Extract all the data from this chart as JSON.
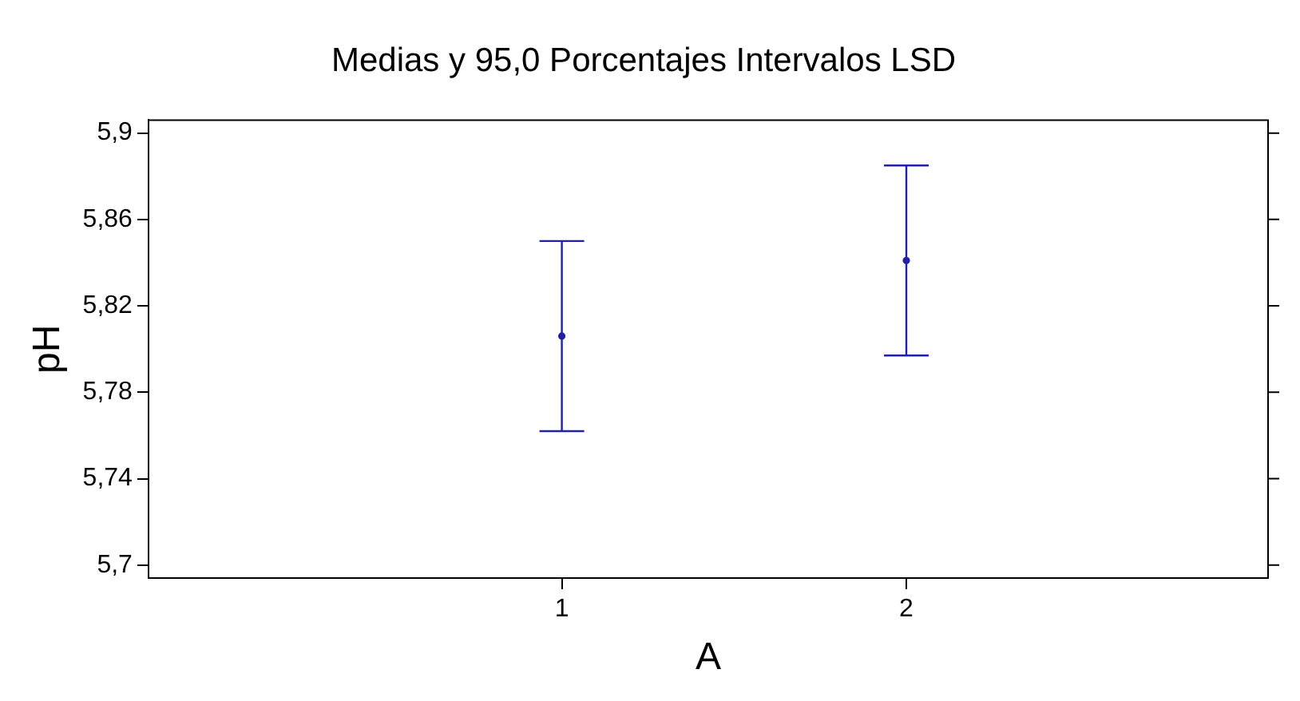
{
  "chart_data": {
    "type": "scatter",
    "title": "Medias y 95,0 Porcentajes Intervalos LSD",
    "xlabel": "A",
    "ylabel": "pH",
    "x": [
      1,
      2
    ],
    "series": [
      {
        "color": "#2020a8",
        "values": [
          5.806,
          5.841
        ],
        "errors": [
          0.044,
          0.044
        ]
      }
    ],
    "xlim": [
      -0.2,
      3.05
    ],
    "xticks": [
      1,
      2
    ],
    "ylim": [
      5.694,
      5.906
    ],
    "yticks": [
      {
        "value": 5.7,
        "label": "5,7"
      },
      {
        "value": 5.74,
        "label": "5,74"
      },
      {
        "value": 5.78,
        "label": "5,78"
      },
      {
        "value": 5.82,
        "label": "5,82"
      },
      {
        "value": 5.86,
        "label": "5,86"
      },
      {
        "value": 5.9,
        "label": "5,9"
      }
    ],
    "grid": false,
    "legend": false,
    "marker": "circle"
  }
}
